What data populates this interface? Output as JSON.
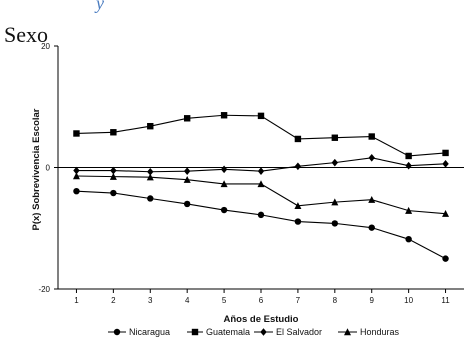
{
  "header": {
    "top_fragment": "y",
    "section_title": "Sexo"
  },
  "chart_data": {
    "type": "line",
    "x": [
      1,
      2,
      3,
      4,
      5,
      6,
      7,
      8,
      9,
      10,
      11
    ],
    "xlabel": "Años de Estudio",
    "ylabel": "P(x) Sobrevivencia Escolar",
    "ylim": [
      -20,
      20
    ],
    "yticks": [
      -20,
      0,
      20
    ],
    "xticks": [
      1,
      2,
      3,
      4,
      5,
      6,
      7,
      8,
      9,
      10,
      11
    ],
    "grid": false,
    "zero_line": true,
    "legend_position": "bottom",
    "series": [
      {
        "name": "Nicaragua",
        "marker": "circle",
        "values": [
          -3.9,
          -4.2,
          -5.1,
          -6.0,
          -7.0,
          -7.8,
          -8.9,
          -9.2,
          -9.9,
          -11.8,
          -15.0
        ]
      },
      {
        "name": "Guatemala",
        "marker": "square",
        "values": [
          5.6,
          5.8,
          6.8,
          8.1,
          8.6,
          8.5,
          4.7,
          4.9,
          5.1,
          1.9,
          2.4
        ]
      },
      {
        "name": "El Salvador",
        "marker": "diamond",
        "values": [
          -0.5,
          -0.5,
          -0.7,
          -0.6,
          -0.3,
          -0.6,
          0.2,
          0.8,
          1.6,
          0.3,
          0.6
        ]
      },
      {
        "name": "Honduras",
        "marker": "triangle",
        "values": [
          -1.4,
          -1.5,
          -1.6,
          -2.0,
          -2.7,
          -2.7,
          -6.3,
          -5.7,
          -5.3,
          -7.1,
          -7.6
        ]
      }
    ]
  }
}
